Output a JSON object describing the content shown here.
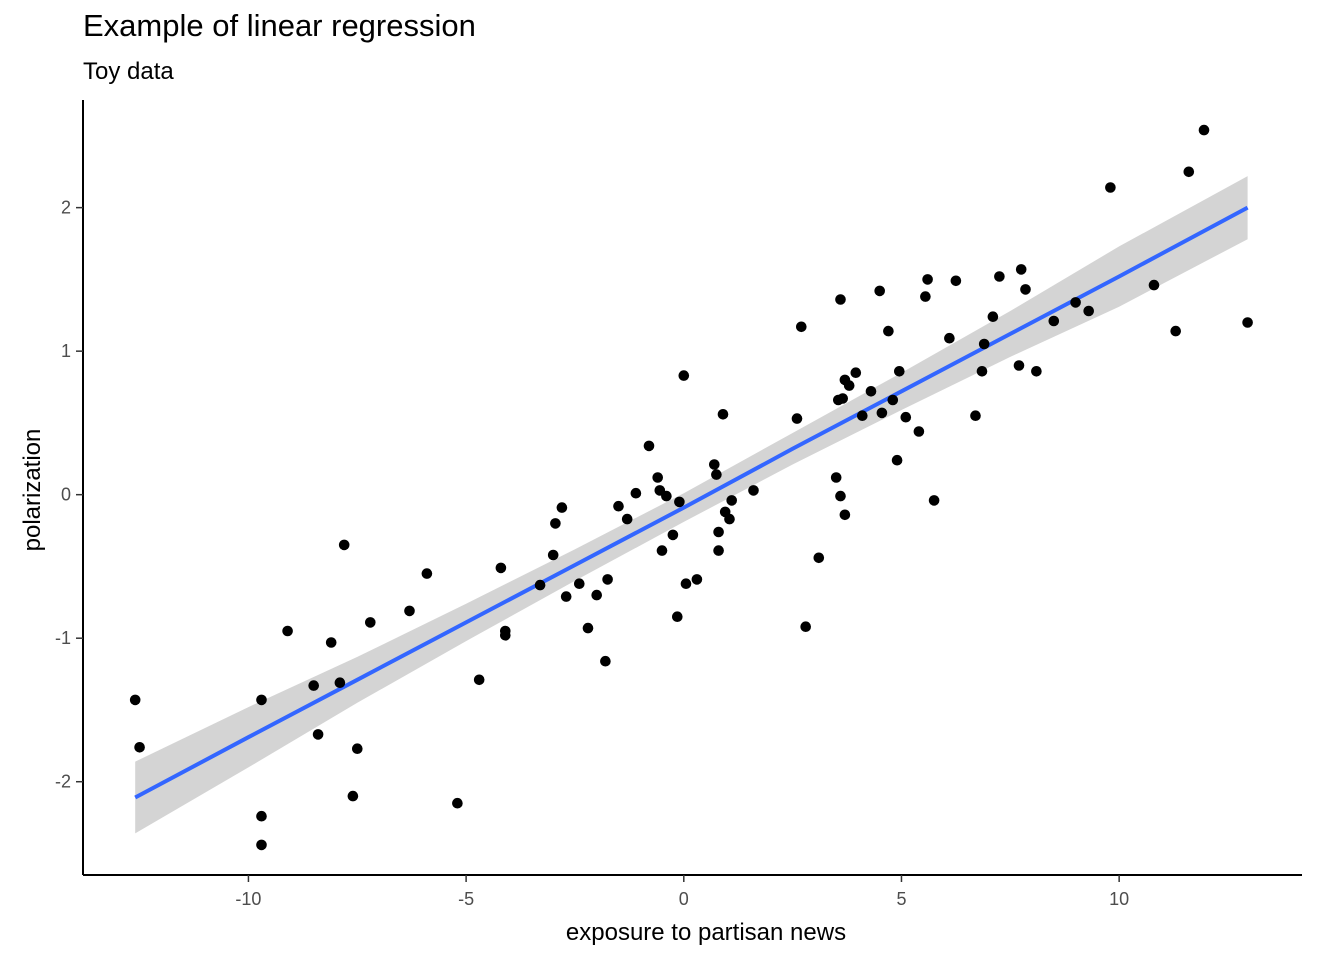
{
  "chart_data": {
    "type": "scatter",
    "title": "Example of linear regression",
    "subtitle": "Toy data",
    "xlabel": "exposure to partisan news",
    "ylabel": "polarization",
    "xlim": [
      -13.8,
      14.2
    ],
    "ylim": [
      -2.65,
      2.75
    ],
    "xticks": [
      -10,
      -5,
      0,
      5,
      10
    ],
    "xtick_labels": [
      "-10",
      "-5",
      "0",
      "5",
      "10"
    ],
    "yticks": [
      -2,
      -1,
      0,
      1,
      2
    ],
    "ytick_labels": [
      "-2",
      "-1",
      "0",
      "1",
      "2"
    ],
    "grid": false,
    "colors": {
      "points": "#000000",
      "fit_line": "#3366ff",
      "confidence_band": "#cccccc",
      "axis": "#000000"
    },
    "points": [
      [
        -12.6,
        -1.43
      ],
      [
        -12.5,
        -1.76
      ],
      [
        -9.7,
        -1.43
      ],
      [
        -9.7,
        -2.24
      ],
      [
        -9.7,
        -2.44
      ],
      [
        -9.1,
        -0.95
      ],
      [
        -8.5,
        -1.33
      ],
      [
        -8.4,
        -1.67
      ],
      [
        -8.1,
        -1.03
      ],
      [
        -7.9,
        -1.31
      ],
      [
        -7.8,
        -0.35
      ],
      [
        -7.6,
        -2.1
      ],
      [
        -7.5,
        -1.77
      ],
      [
        -7.2,
        -0.89
      ],
      [
        -6.3,
        -0.81
      ],
      [
        -5.9,
        -0.55
      ],
      [
        -5.2,
        -2.15
      ],
      [
        -4.7,
        -1.29
      ],
      [
        -4.2,
        -0.51
      ],
      [
        -4.1,
        -0.98
      ],
      [
        -4.1,
        -0.95
      ],
      [
        -3.3,
        -0.63
      ],
      [
        -3.0,
        -0.42
      ],
      [
        -2.95,
        -0.2
      ],
      [
        -2.8,
        -0.09
      ],
      [
        -2.7,
        -0.71
      ],
      [
        -2.4,
        -0.62
      ],
      [
        -2.2,
        -0.93
      ],
      [
        -2.0,
        -0.7
      ],
      [
        -1.8,
        -1.16
      ],
      [
        -1.75,
        -0.59
      ],
      [
        -1.5,
        -0.08
      ],
      [
        -1.3,
        -0.17
      ],
      [
        -1.1,
        0.01
      ],
      [
        -0.8,
        0.34
      ],
      [
        -0.6,
        0.12
      ],
      [
        -0.55,
        0.03
      ],
      [
        -0.5,
        -0.39
      ],
      [
        -0.4,
        -0.01
      ],
      [
        -0.25,
        -0.28
      ],
      [
        -0.15,
        -0.85
      ],
      [
        -0.1,
        -0.05
      ],
      [
        0.0,
        0.83
      ],
      [
        0.05,
        -0.62
      ],
      [
        0.3,
        -0.59
      ],
      [
        0.7,
        0.21
      ],
      [
        0.75,
        0.14
      ],
      [
        0.8,
        -0.39
      ],
      [
        0.8,
        -0.26
      ],
      [
        0.9,
        0.56
      ],
      [
        0.95,
        -0.12
      ],
      [
        1.05,
        -0.17
      ],
      [
        1.1,
        -0.04
      ],
      [
        1.6,
        0.03
      ],
      [
        2.6,
        0.53
      ],
      [
        2.7,
        1.17
      ],
      [
        2.8,
        -0.92
      ],
      [
        3.1,
        -0.44
      ],
      [
        3.5,
        0.12
      ],
      [
        3.55,
        0.66
      ],
      [
        3.6,
        -0.01
      ],
      [
        3.6,
        1.36
      ],
      [
        3.65,
        0.67
      ],
      [
        3.7,
        -0.14
      ],
      [
        3.7,
        0.8
      ],
      [
        3.8,
        0.76
      ],
      [
        3.95,
        0.85
      ],
      [
        4.1,
        0.55
      ],
      [
        4.3,
        0.72
      ],
      [
        4.5,
        1.42
      ],
      [
        4.55,
        0.57
      ],
      [
        4.7,
        1.14
      ],
      [
        4.8,
        0.66
      ],
      [
        4.9,
        0.24
      ],
      [
        4.95,
        0.86
      ],
      [
        5.1,
        0.54
      ],
      [
        5.4,
        0.44
      ],
      [
        5.55,
        1.38
      ],
      [
        5.6,
        1.5
      ],
      [
        5.75,
        -0.04
      ],
      [
        6.1,
        1.09
      ],
      [
        6.25,
        1.49
      ],
      [
        6.7,
        0.55
      ],
      [
        6.85,
        0.86
      ],
      [
        6.9,
        1.05
      ],
      [
        7.1,
        1.24
      ],
      [
        7.25,
        1.52
      ],
      [
        7.7,
        0.9
      ],
      [
        7.75,
        1.57
      ],
      [
        7.85,
        1.43
      ],
      [
        8.1,
        0.86
      ],
      [
        8.5,
        1.21
      ],
      [
        9.0,
        1.34
      ],
      [
        9.3,
        1.28
      ],
      [
        9.8,
        2.14
      ],
      [
        10.8,
        1.46
      ],
      [
        11.3,
        1.14
      ],
      [
        11.6,
        2.25
      ],
      [
        11.95,
        2.54
      ],
      [
        12.95,
        1.2
      ]
    ],
    "fit": {
      "x": [
        -12.6,
        -10,
        -7.5,
        -5,
        -2.5,
        0,
        2.5,
        5,
        7.5,
        10,
        12.95
      ],
      "y": [
        -2.11,
        -1.69,
        -1.29,
        -0.89,
        -0.49,
        -0.09,
        0.32,
        0.72,
        1.12,
        1.52,
        2.0
      ],
      "lower": [
        -2.36,
        -1.9,
        -1.45,
        -1.02,
        -0.6,
        -0.19,
        0.21,
        0.59,
        0.96,
        1.31,
        1.78
      ],
      "upper": [
        -1.86,
        -1.48,
        -1.13,
        -0.76,
        -0.38,
        0.01,
        0.43,
        0.85,
        1.28,
        1.73,
        2.22
      ]
    }
  }
}
